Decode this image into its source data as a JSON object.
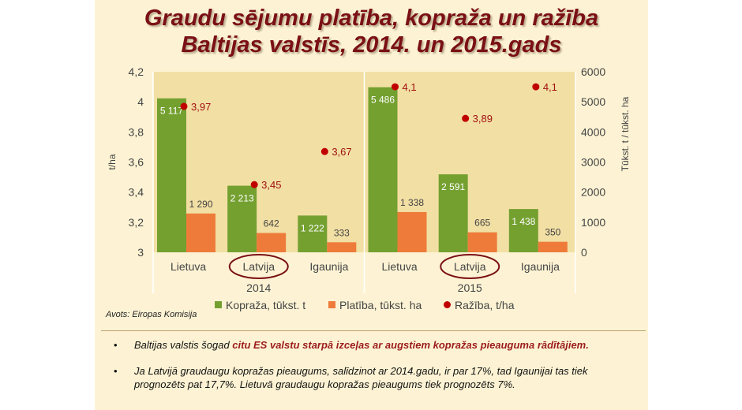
{
  "title_line1": "Graudu sējumu platība, kopraža un ražība",
  "title_line2": "Baltijas valstīs, 2014. un 2015.gads",
  "source": "Avots: Eiropas Komisija",
  "bullets": [
    {
      "symbol": "•",
      "part1": "Baltijas valstis šogad ",
      "highlight": "citu ES valstu starpā izceļas ar augstiem kopražas pieauguma rādītājiem.",
      "part2": ""
    },
    {
      "symbol": "•",
      "part1": "Ja Latvijā graudaugu kopražas pieaugums, salīdzinot ar 2014.gadu, ir par 17%, tad Igaunijai tas tiek prognozēts pat 17,7%. Lietuvā graudaugu kopražas pieaugums tiek prognozēts 7%.",
      "highlight": "",
      "part2": ""
    }
  ],
  "colors": {
    "kopraza": "#74a030",
    "platiba": "#ee7b3a",
    "raziba": "#c00000",
    "plot_bg": "#f2dfa4",
    "circle": "#7a1016"
  },
  "chart_data": {
    "type": "bar",
    "groups": [
      {
        "label": "2014",
        "categories": [
          "Lietuva",
          "Latvija",
          "Igaunija"
        ]
      },
      {
        "label": "2015",
        "categories": [
          "Lietuva",
          "Latvija",
          "Igaunija"
        ]
      }
    ],
    "circled_categories": [
      "Latvija"
    ],
    "series": [
      {
        "name": "Kopraža, tūkst. t",
        "axis": "right",
        "kind": "bar",
        "values": [
          5117,
          2213,
          1222,
          5486,
          2591,
          1438
        ],
        "labels": [
          "5 117",
          "2 213",
          "1 222",
          "5 486",
          "2 591",
          "1 438"
        ]
      },
      {
        "name": "Platība, tūkst. ha",
        "axis": "right",
        "kind": "bar",
        "values": [
          1290,
          642,
          333,
          1338,
          665,
          350
        ],
        "labels": [
          "1 290",
          "642",
          "333",
          "1 338",
          "665",
          "350"
        ]
      },
      {
        "name": "Ražība, t/ha",
        "axis": "left",
        "kind": "scatter",
        "values": [
          3.97,
          3.45,
          3.67,
          4.1,
          3.89,
          4.1
        ],
        "labels": [
          "3,97",
          "3,45",
          "3,67",
          "4,1",
          "3,89",
          "4,1"
        ]
      }
    ],
    "y_left": {
      "label": "t/ha",
      "min": 3,
      "max": 4.2,
      "ticks": [
        3,
        3.2,
        3.4,
        3.6,
        3.8,
        4,
        4.2
      ],
      "tick_labels": [
        "3",
        "3,2",
        "3,4",
        "3,6",
        "3,8",
        "4",
        "4,2"
      ]
    },
    "y_right": {
      "label": "Tūkst. t / tūkst. ha",
      "min": 0,
      "max": 6000,
      "ticks": [
        0,
        1000,
        2000,
        3000,
        4000,
        5000,
        6000
      ],
      "tick_labels": [
        "0",
        "1000",
        "2000",
        "3000",
        "4000",
        "5000",
        "6000"
      ]
    },
    "grid": false,
    "legend_position": "bottom"
  }
}
